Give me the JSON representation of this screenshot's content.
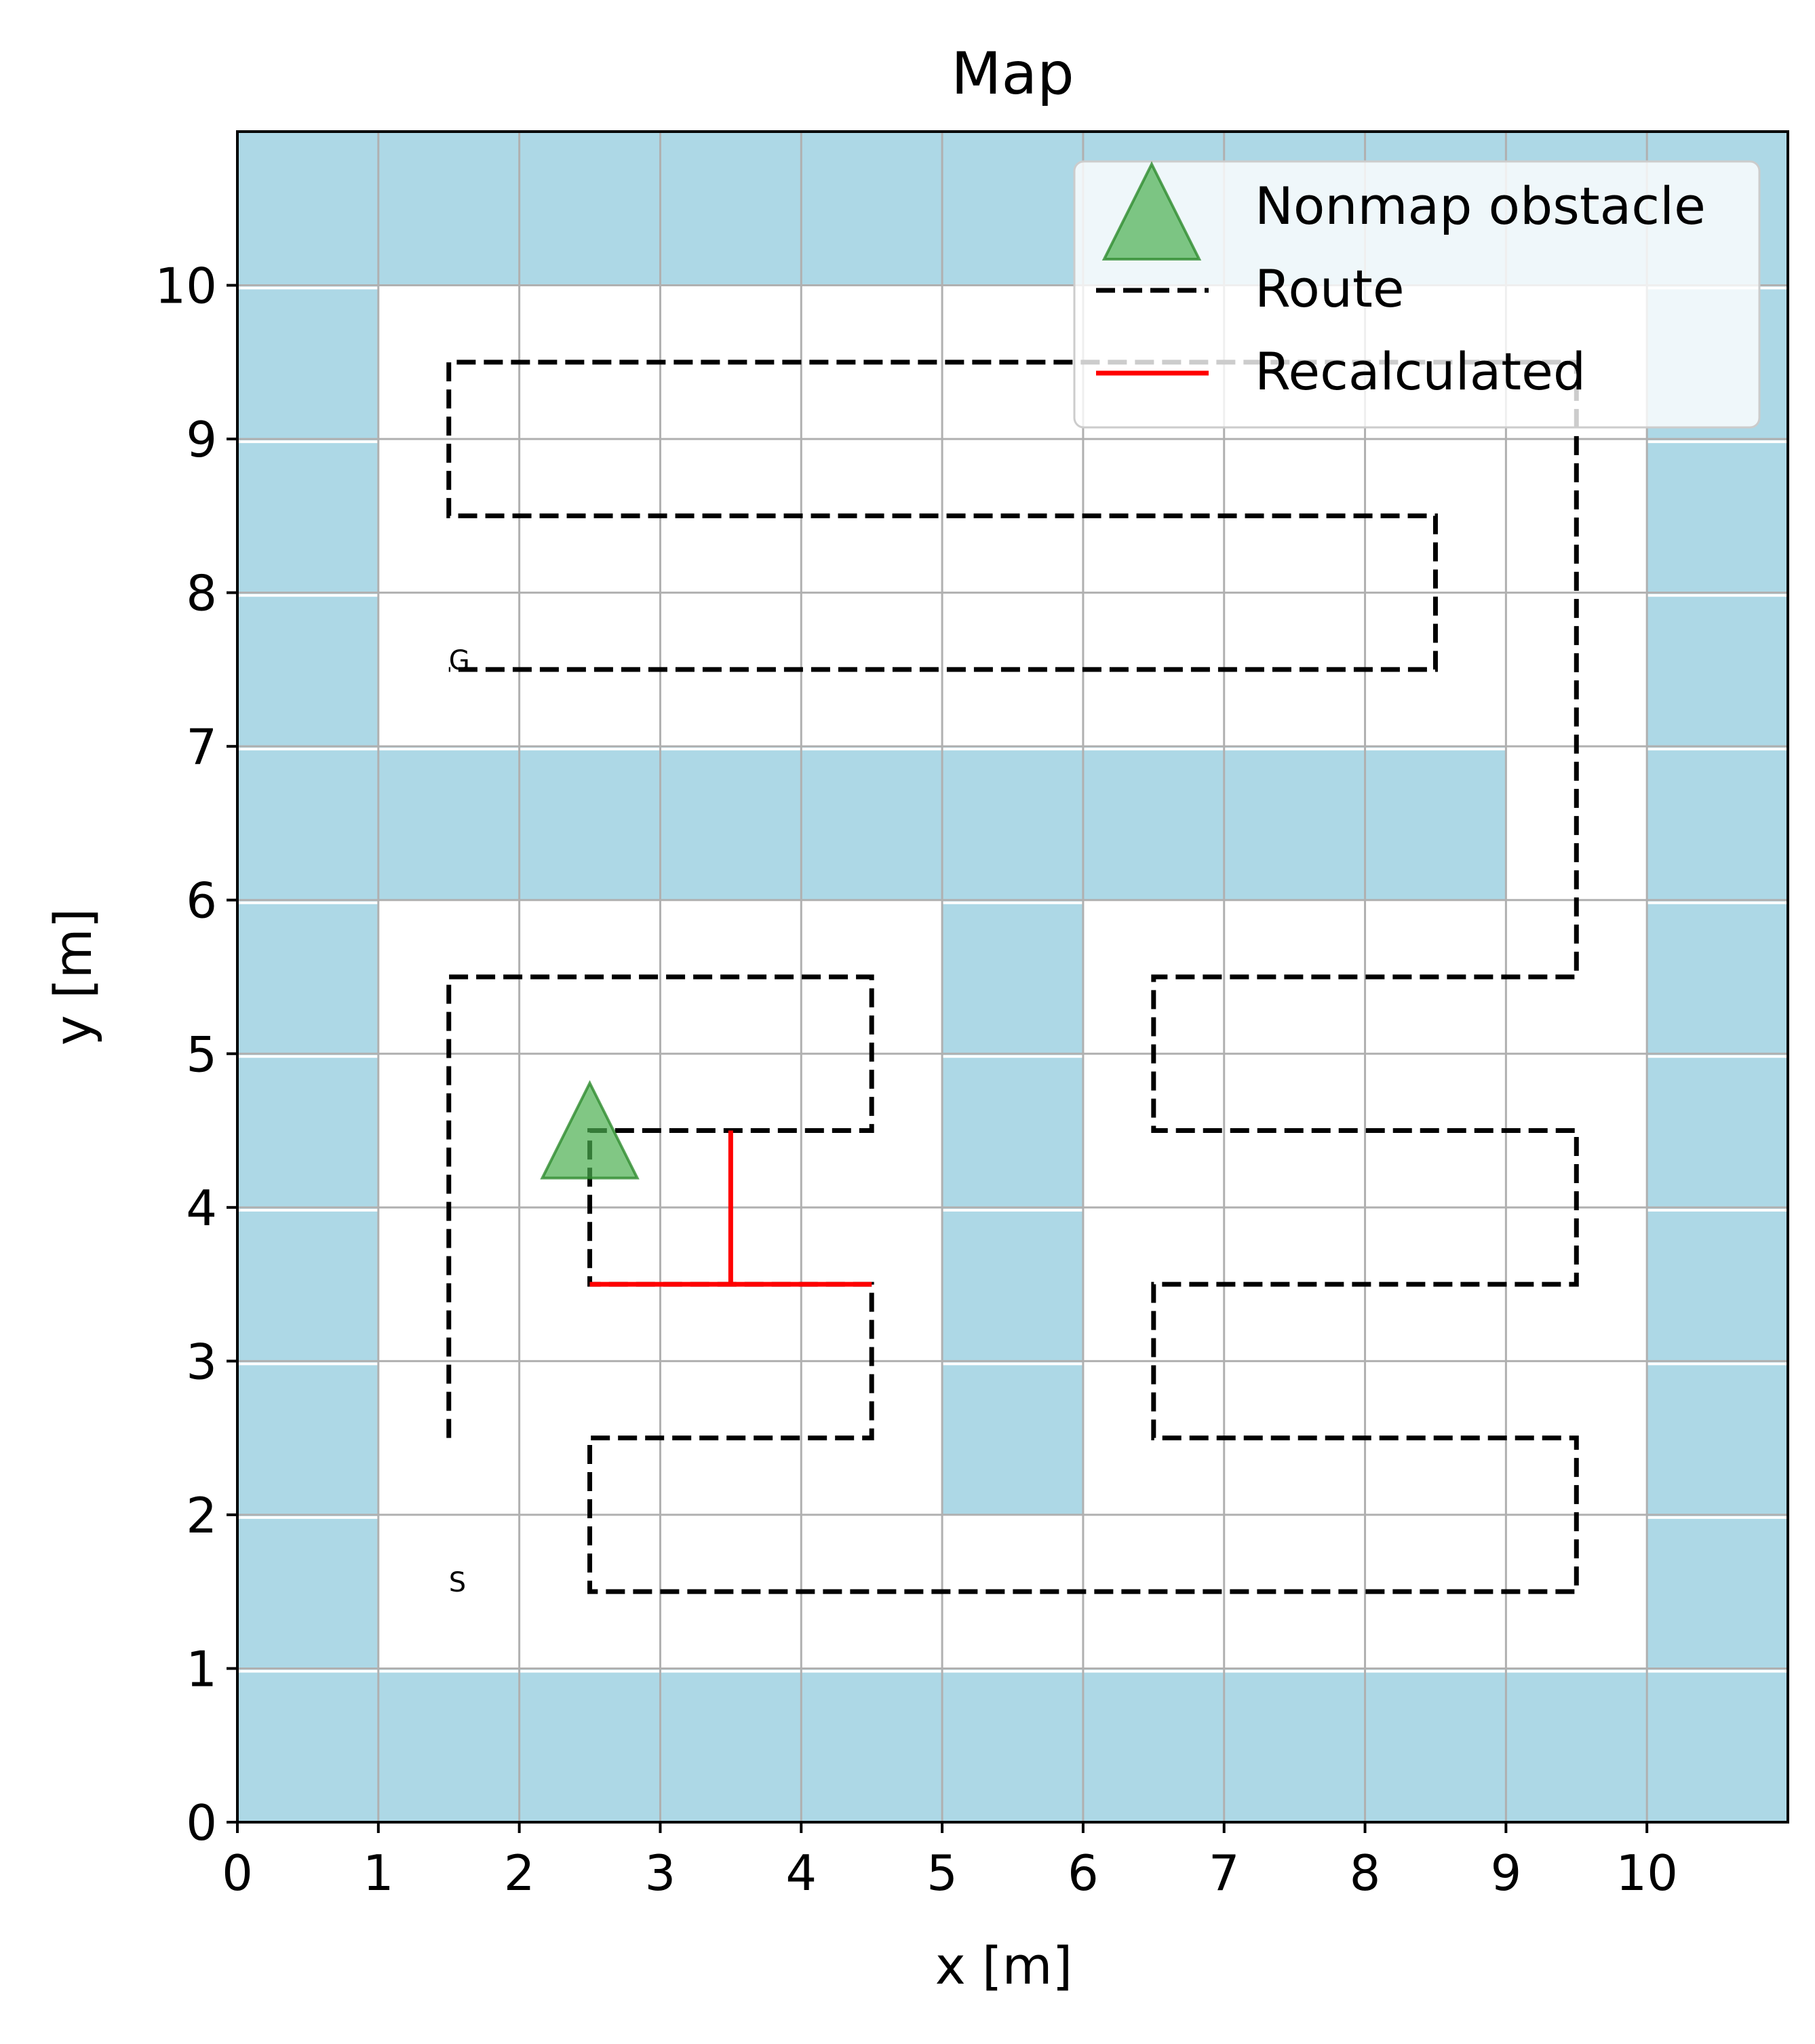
{
  "chart_data": {
    "type": "line",
    "title": "Map",
    "xlabel": "x [m]",
    "ylabel": "y [m]",
    "xlim": [
      0,
      11
    ],
    "ylim": [
      0,
      11
    ],
    "xticks": [
      0,
      1,
      2,
      3,
      4,
      5,
      6,
      7,
      8,
      9,
      10
    ],
    "yticks": [
      0,
      1,
      2,
      3,
      4,
      5,
      6,
      7,
      8,
      9,
      10
    ],
    "xtick_labels": [
      "0",
      "1",
      "2",
      "3",
      "4",
      "5",
      "6",
      "7",
      "8",
      "9",
      "10"
    ],
    "ytick_labels": [
      "0",
      "1",
      "2",
      "3",
      "4",
      "5",
      "6",
      "7",
      "8",
      "9",
      "10"
    ],
    "grid": true,
    "legend_position": "top-right",
    "obstacle_color": "#add8e6",
    "map_obstacle_cells": [
      [
        0,
        0
      ],
      [
        1,
        0
      ],
      [
        2,
        0
      ],
      [
        3,
        0
      ],
      [
        4,
        0
      ],
      [
        5,
        0
      ],
      [
        6,
        0
      ],
      [
        7,
        0
      ],
      [
        8,
        0
      ],
      [
        9,
        0
      ],
      [
        10,
        0
      ],
      [
        0,
        10
      ],
      [
        1,
        10
      ],
      [
        2,
        10
      ],
      [
        3,
        10
      ],
      [
        4,
        10
      ],
      [
        5,
        10
      ],
      [
        6,
        10
      ],
      [
        7,
        10
      ],
      [
        8,
        10
      ],
      [
        9,
        10
      ],
      [
        10,
        10
      ],
      [
        0,
        1
      ],
      [
        0,
        2
      ],
      [
        0,
        3
      ],
      [
        0,
        4
      ],
      [
        0,
        5
      ],
      [
        0,
        6
      ],
      [
        0,
        7
      ],
      [
        0,
        8
      ],
      [
        0,
        9
      ],
      [
        10,
        1
      ],
      [
        10,
        2
      ],
      [
        10,
        3
      ],
      [
        10,
        4
      ],
      [
        10,
        5
      ],
      [
        10,
        6
      ],
      [
        10,
        7
      ],
      [
        10,
        8
      ],
      [
        10,
        9
      ],
      [
        1,
        6
      ],
      [
        2,
        6
      ],
      [
        3,
        6
      ],
      [
        4,
        6
      ],
      [
        5,
        6
      ],
      [
        6,
        6
      ],
      [
        7,
        6
      ],
      [
        8,
        6
      ],
      [
        5,
        2
      ],
      [
        5,
        3
      ],
      [
        5,
        4
      ],
      [
        5,
        5
      ]
    ],
    "series": [
      {
        "name": "Route",
        "color": "#000000",
        "style": "dashed",
        "segments": [
          [
            [
              1.5,
              2.5
            ],
            [
              1.5,
              5.5
            ],
            [
              4.5,
              5.5
            ],
            [
              4.5,
              4.5
            ],
            [
              2.5,
              4.5
            ],
            [
              2.5,
              3.5
            ],
            [
              4.5,
              3.5
            ],
            [
              4.5,
              2.5
            ],
            [
              2.5,
              2.5
            ],
            [
              2.5,
              1.5
            ],
            [
              9.5,
              1.5
            ],
            [
              9.5,
              2.5
            ],
            [
              6.5,
              2.5
            ],
            [
              6.5,
              3.5
            ],
            [
              9.5,
              3.5
            ],
            [
              9.5,
              4.5
            ],
            [
              6.5,
              4.5
            ],
            [
              6.5,
              5.5
            ],
            [
              9.5,
              5.5
            ],
            [
              9.5,
              9.5
            ],
            [
              1.5,
              9.5
            ],
            [
              1.5,
              8.5
            ],
            [
              8.5,
              8.5
            ],
            [
              8.5,
              7.5
            ],
            [
              1.5,
              7.5
            ]
          ]
        ]
      },
      {
        "name": "Recalculated",
        "color": "#ff0000",
        "style": "solid",
        "segments": [
          [
            [
              3.5,
              4.5
            ],
            [
              3.5,
              3.5
            ]
          ],
          [
            [
              2.5,
              3.5
            ],
            [
              4.5,
              3.5
            ]
          ]
        ]
      },
      {
        "name": "Nonmap obstacle",
        "type": "scatter",
        "marker": "triangle",
        "color": "#4caf50",
        "points": [
          [
            2.5,
            4.5
          ]
        ]
      }
    ],
    "annotations": [
      {
        "text": "G",
        "x": 1.5,
        "y": 7.5
      },
      {
        "text": "S",
        "x": 1.5,
        "y": 1.5
      }
    ]
  }
}
